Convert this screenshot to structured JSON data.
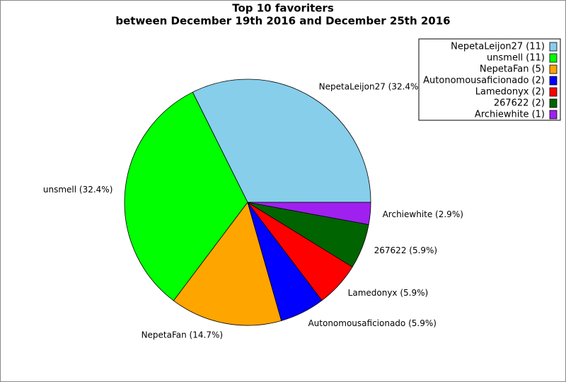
{
  "chart_data": {
    "type": "pie",
    "title": "Top 10 favoriters",
    "subtitle": "between December 19th 2016 and December 25th 2016",
    "categories": [
      "NepetaLeijon27",
      "unsmell",
      "NepetaFan",
      "Autonomousaficionado",
      "Lamedonyx",
      "267622",
      "Archiewhite"
    ],
    "values": [
      32.4,
      32.4,
      14.7,
      5.9,
      5.9,
      5.9,
      2.9
    ],
    "value_labels": [
      "NepetaLeijon27 (32.4%)",
      "unsmell (32.4%)",
      "NepetaFan (14.7%)",
      "Autonomousaficionado (5.9%)",
      "Lamedonyx (5.9%)",
      "267622 (5.9%)",
      "Archiewhite (2.9%)"
    ],
    "legend_labels": [
      "NepetaLeijon27 (11)",
      "unsmell (11)",
      "NepetaFan (5)",
      "Autonomousaficionado (2)",
      "Lamedonyx (2)",
      "267622 (2)",
      "Archiewhite (1)"
    ],
    "colors": [
      "#87ceeb",
      "#00ff00",
      "#ffa500",
      "#0000ff",
      "#ff0000",
      "#006400",
      "#a020f0"
    ],
    "legend": "upper right"
  }
}
